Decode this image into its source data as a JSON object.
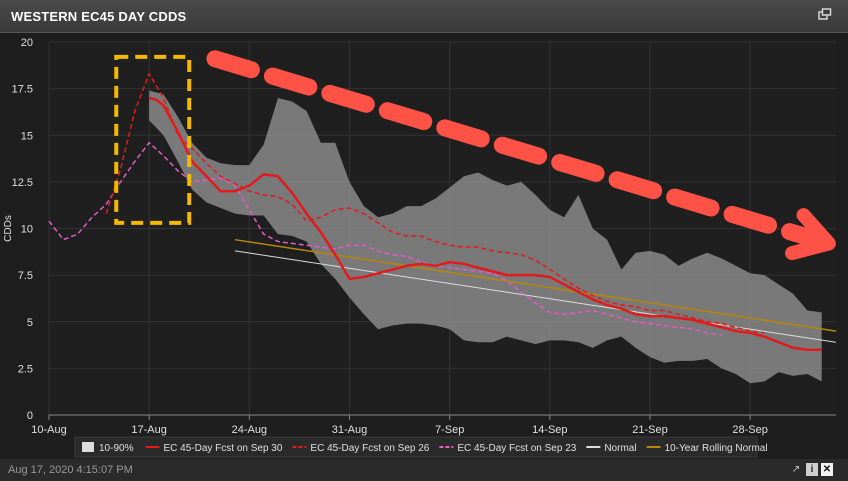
{
  "header": {
    "title": "WESTERN EC45 DAY CDDS",
    "expand_icon": "expand-window-icon"
  },
  "footer": {
    "timestamp": "Aug 17, 2020 4:15:07 PM",
    "icons": [
      "export-icon",
      "info-icon",
      "close-icon"
    ]
  },
  "chart_data": {
    "type": "line",
    "title": "",
    "xlabel": "",
    "ylabel": "CDDs",
    "ylim": [
      0,
      20
    ],
    "yticks": [
      "0",
      "2.5",
      "5",
      "7.5",
      "10",
      "12.5",
      "15",
      "17.5",
      "20"
    ],
    "xticks": [
      "10-Aug",
      "17-Aug",
      "24-Aug",
      "31-Aug",
      "7-Sep",
      "14-Sep",
      "21-Sep",
      "28-Sep"
    ],
    "x_unit": "day offset from 10-Aug",
    "xlim": [
      0,
      55
    ],
    "grid": true,
    "legend_position": "bottom",
    "band": {
      "name": "10-90%",
      "color": "#8a8a8a",
      "x": [
        7,
        8,
        9,
        10,
        11,
        12,
        13,
        14,
        15,
        16,
        17,
        18,
        19,
        20,
        21,
        22,
        23,
        24,
        25,
        26,
        27,
        28,
        29,
        30,
        31,
        32,
        33,
        34,
        35,
        36,
        37,
        38,
        39,
        40,
        41,
        42,
        43,
        44,
        45,
        46,
        47,
        48,
        49,
        50,
        51,
        52,
        53,
        54
      ],
      "upper": [
        17.4,
        17.2,
        16.0,
        14.6,
        13.8,
        13.5,
        13.4,
        13.4,
        14.5,
        17.0,
        16.8,
        16.3,
        14.6,
        14.6,
        12.5,
        11.2,
        10.6,
        10.8,
        11.2,
        11.2,
        11.6,
        12.2,
        12.8,
        13.0,
        12.6,
        12.3,
        12.5,
        11.8,
        11.0,
        10.6,
        11.8,
        10.0,
        9.4,
        7.8,
        8.7,
        8.8,
        8.6,
        8.0,
        8.4,
        8.7,
        8.4,
        8.0,
        7.6,
        7.5,
        7.0,
        6.5,
        5.6,
        5.5
      ],
      "lower": [
        15.8,
        15.0,
        13.6,
        12.1,
        11.4,
        11.1,
        10.8,
        10.7,
        10.7,
        9.7,
        9.6,
        9.3,
        8.1,
        7.3,
        6.3,
        5.4,
        4.6,
        4.8,
        4.9,
        4.9,
        4.8,
        4.6,
        4.0,
        3.9,
        3.9,
        4.2,
        4.0,
        3.8,
        4.0,
        4.0,
        3.9,
        3.6,
        4.0,
        4.2,
        3.6,
        3.1,
        2.8,
        2.9,
        2.9,
        3.0,
        2.5,
        2.2,
        1.7,
        1.8,
        2.3,
        2.1,
        2.2,
        1.8
      ]
    },
    "series": [
      {
        "name": "EC 45-Day Fcst on Sep 30",
        "color": "#e31a1c",
        "dash": false,
        "width": 2.5,
        "x": [
          7,
          7.5,
          8,
          9,
          10,
          11,
          12,
          13,
          14,
          15,
          16,
          17,
          18,
          19,
          20,
          21,
          22,
          23,
          24,
          25,
          26,
          27,
          28,
          29,
          30,
          31,
          32,
          33,
          34,
          35,
          36,
          37,
          38,
          39,
          40,
          41,
          42,
          43,
          44,
          45,
          46,
          47,
          48,
          49,
          50,
          51,
          52,
          53,
          54
        ],
        "y": [
          17.0,
          16.9,
          16.6,
          15.2,
          13.6,
          12.8,
          12.0,
          12.0,
          12.3,
          12.9,
          12.8,
          11.9,
          10.8,
          9.8,
          8.6,
          7.3,
          7.4,
          7.6,
          7.8,
          8.0,
          8.1,
          8.0,
          8.2,
          8.1,
          7.9,
          7.7,
          7.5,
          7.5,
          7.5,
          7.4,
          7.0,
          6.6,
          6.2,
          5.9,
          5.7,
          5.4,
          5.3,
          5.3,
          5.2,
          5.1,
          4.9,
          4.7,
          4.5,
          4.4,
          4.2,
          3.9,
          3.6,
          3.5,
          3.5
        ]
      },
      {
        "name": "EC 45-Day Fcst on Sep 26",
        "color": "#e31a1c",
        "dash": true,
        "width": 1.5,
        "x": [
          4,
          5,
          6,
          7,
          8,
          9,
          10,
          11,
          12,
          13,
          14,
          15,
          16,
          17,
          18,
          19,
          20,
          21,
          22,
          23,
          24,
          25,
          26,
          27,
          28,
          29,
          30,
          31,
          32,
          33,
          34,
          35,
          36,
          37,
          38,
          39,
          40,
          41,
          42,
          43,
          44,
          45,
          46,
          47,
          48,
          49,
          50
        ],
        "y": [
          10.8,
          13.2,
          16.3,
          18.3,
          17.0,
          15.0,
          14.3,
          13.5,
          12.8,
          12.4,
          12.0,
          11.8,
          11.7,
          11.3,
          10.4,
          10.6,
          11.0,
          11.1,
          10.8,
          10.3,
          9.8,
          9.6,
          9.6,
          9.3,
          9.1,
          9.0,
          9.0,
          8.8,
          8.7,
          8.6,
          8.3,
          7.8,
          7.3,
          6.8,
          6.4,
          6.1,
          5.9,
          5.8,
          5.6,
          5.6,
          5.4,
          5.2,
          5.0,
          4.9,
          4.7,
          4.5,
          4.4
        ]
      },
      {
        "name": "EC 45-Day Fcst on Sep 23",
        "color": "#e05cc8",
        "dash": true,
        "width": 1.5,
        "x": [
          0,
          1,
          2,
          3,
          4,
          5,
          6,
          7,
          8,
          9,
          10,
          11,
          12,
          13,
          14,
          15,
          16,
          17,
          18,
          19,
          20,
          21,
          22,
          23,
          24,
          25,
          26,
          27,
          28,
          29,
          30,
          31,
          32,
          33,
          34,
          35,
          36,
          37,
          38,
          39,
          40,
          41,
          42,
          43,
          44,
          45,
          46,
          47
        ],
        "y": [
          10.4,
          9.4,
          9.7,
          10.6,
          11.3,
          12.5,
          13.6,
          14.6,
          13.9,
          13.1,
          12.5,
          12.6,
          12.7,
          12.3,
          11.0,
          9.7,
          9.3,
          9.2,
          9.1,
          9.0,
          8.9,
          9.1,
          9.1,
          8.8,
          8.6,
          8.5,
          8.2,
          8.0,
          7.9,
          7.8,
          7.7,
          7.6,
          7.2,
          6.6,
          6.0,
          5.5,
          5.4,
          5.5,
          5.6,
          5.4,
          5.2,
          5.0,
          4.9,
          4.8,
          4.7,
          4.6,
          4.4,
          4.3
        ]
      },
      {
        "name": "Normal",
        "color": "#dddddd",
        "dash": false,
        "width": 1,
        "x": [
          13,
          55
        ],
        "y": [
          8.8,
          3.9
        ]
      },
      {
        "name": "10-Year Rolling Normal",
        "color": "#b8860b",
        "dash": false,
        "width": 1.5,
        "x": [
          13,
          55
        ],
        "y": [
          9.4,
          4.5
        ]
      }
    ],
    "annotations": [
      {
        "kind": "dashed-box",
        "color": "#f5b800",
        "x": [
          4.7,
          9.8
        ],
        "y": [
          10.3,
          19.2
        ]
      },
      {
        "kind": "trend-arrow",
        "color": "#ff5247",
        "from": [
          11.6,
          19.1
        ],
        "to": [
          54.5,
          9.2
        ]
      }
    ]
  }
}
